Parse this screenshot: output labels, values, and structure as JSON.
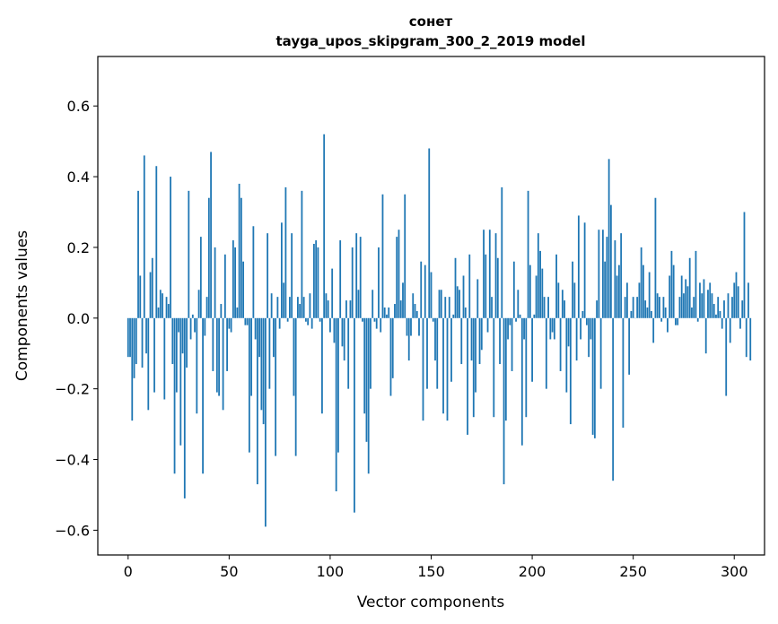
{
  "chart_data": {
    "type": "bar",
    "title": "сонет",
    "subtitle": "tayga_upos_skipgram_300_2_2019 model",
    "xlabel": "Vector components",
    "ylabel": "Components values",
    "xlim": [
      -15,
      315
    ],
    "ylim": [
      -0.67,
      0.74
    ],
    "xticks": [
      0,
      50,
      100,
      150,
      200,
      250,
      300
    ],
    "yticks": [
      -0.6,
      -0.4,
      -0.2,
      0.0,
      0.2,
      0.4,
      0.6
    ],
    "ytick_labels": [
      "−0.6",
      "−0.4",
      "−0.2",
      "0.0",
      "0.2",
      "0.4",
      "0.6"
    ],
    "bar_color": "#1f77b4",
    "values": [
      -0.11,
      -0.11,
      -0.29,
      -0.17,
      -0.13,
      0.36,
      0.12,
      -0.14,
      0.46,
      -0.1,
      -0.26,
      0.13,
      0.17,
      -0.21,
      0.43,
      0.03,
      0.08,
      0.07,
      -0.23,
      0.06,
      0.04,
      0.4,
      -0.13,
      -0.44,
      -0.21,
      -0.04,
      -0.36,
      -0.1,
      -0.51,
      -0.14,
      0.36,
      -0.06,
      0.01,
      -0.04,
      -0.27,
      0.08,
      0.23,
      -0.44,
      -0.05,
      0.06,
      0.34,
      0.47,
      -0.15,
      0.2,
      -0.21,
      -0.22,
      0.04,
      -0.26,
      0.18,
      -0.15,
      -0.03,
      -0.04,
      0.22,
      0.2,
      0.03,
      0.38,
      0.34,
      0.16,
      -0.02,
      -0.02,
      -0.38,
      -0.22,
      0.26,
      -0.06,
      -0.47,
      -0.11,
      -0.26,
      -0.3,
      -0.59,
      0.24,
      -0.2,
      0.07,
      -0.11,
      -0.39,
      0.06,
      -0.03,
      0.27,
      0.1,
      0.37,
      -0.01,
      0.06,
      0.24,
      -0.22,
      -0.39,
      0.06,
      0.04,
      0.36,
      0.06,
      -0.01,
      -0.02,
      0.07,
      -0.03,
      0.21,
      0.22,
      0.2,
      -0.01,
      -0.27,
      0.52,
      0.07,
      0.05,
      -0.04,
      0.14,
      -0.07,
      -0.49,
      -0.38,
      0.22,
      -0.08,
      -0.12,
      0.05,
      -0.2,
      0.05,
      0.2,
      -0.55,
      0.24,
      0.08,
      0.23,
      -0.01,
      -0.27,
      -0.35,
      -0.44,
      -0.2,
      0.08,
      -0.01,
      -0.03,
      0.2,
      -0.04,
      0.35,
      0.03,
      0.01,
      0.03,
      -0.22,
      -0.17,
      0.04,
      0.23,
      0.25,
      0.05,
      0.1,
      0.35,
      -0.05,
      -0.12,
      -0.05,
      0.07,
      0.04,
      0.02,
      -0.05,
      0.16,
      -0.29,
      0.15,
      -0.2,
      0.48,
      0.13,
      -0.01,
      -0.12,
      -0.2,
      0.08,
      0.08,
      -0.27,
      0.06,
      -0.29,
      0.06,
      -0.18,
      0.01,
      0.17,
      0.09,
      0.08,
      -0.13,
      0.12,
      0.03,
      -0.33,
      0.18,
      -0.12,
      -0.28,
      -0.21,
      0.11,
      -0.13,
      -0.09,
      0.25,
      0.18,
      -0.04,
      0.25,
      0.06,
      -0.28,
      0.24,
      0.17,
      -0.13,
      0.37,
      -0.47,
      -0.29,
      -0.06,
      -0.02,
      -0.15,
      0.16,
      -0.01,
      0.08,
      0.01,
      -0.36,
      -0.06,
      -0.28,
      0.36,
      0.15,
      -0.18,
      0.01,
      0.12,
      0.24,
      0.19,
      0.14,
      0.06,
      -0.2,
      0.06,
      -0.06,
      -0.04,
      -0.06,
      0.18,
      0.1,
      -0.15,
      0.08,
      0.05,
      -0.21,
      -0.08,
      -0.3,
      0.16,
      0.1,
      -0.12,
      0.29,
      -0.06,
      0.02,
      0.27,
      -0.02,
      -0.11,
      -0.06,
      -0.33,
      -0.34,
      0.05,
      0.25,
      -0.2,
      0.25,
      0.16,
      0.23,
      0.45,
      0.32,
      -0.46,
      0.22,
      0.12,
      0.15,
      0.24,
      -0.31,
      0.06,
      0.1,
      -0.16,
      0.02,
      0.06,
      0.0,
      0.06,
      0.1,
      0.2,
      0.15,
      0.05,
      0.03,
      0.13,
      0.02,
      -0.07,
      0.34,
      0.07,
      0.06,
      -0.01,
      0.06,
      0.03,
      -0.04,
      0.12,
      0.19,
      0.15,
      -0.02,
      -0.02,
      0.06,
      0.12,
      0.07,
      0.11,
      0.09,
      0.17,
      0.03,
      0.06,
      0.19,
      -0.01,
      0.1,
      0.07,
      0.11,
      -0.1,
      0.08,
      0.1,
      0.07,
      0.04,
      0.01,
      0.06,
      0.02,
      -0.03,
      0.05,
      -0.22,
      0.07,
      -0.07,
      0.06,
      0.1,
      0.13,
      0.09,
      -0.03,
      0.05,
      0.3,
      -0.11,
      0.1,
      -0.12
    ]
  }
}
